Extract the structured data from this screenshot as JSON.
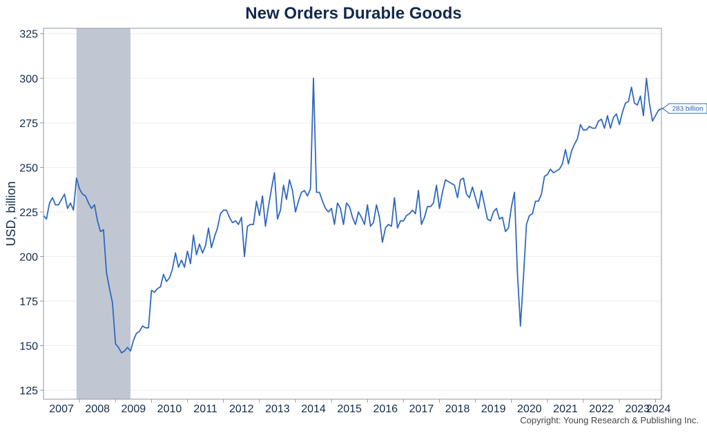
{
  "title": "New Orders Durable Goods",
  "copyright": "Copyright: Young Research & Publishing Inc.",
  "colors": {
    "line": "#2f68bf",
    "recession": "#c0c7d2",
    "text": "#13294b",
    "grid": "#eeeeee",
    "frame": "#8c96a8"
  },
  "chart_data": {
    "type": "line",
    "title": "New Orders Durable Goods",
    "ylabel": "USD, billion",
    "xlabel": "",
    "ylim": [
      120,
      328
    ],
    "xlim": [
      "2007-01",
      "2024-03"
    ],
    "yticks": [
      125,
      150,
      175,
      200,
      225,
      250,
      275,
      300,
      325
    ],
    "xtick_labels": [
      "2007",
      "2008",
      "2009",
      "2010",
      "2011",
      "2012",
      "2013",
      "2014",
      "2015",
      "2016",
      "2017",
      "2018",
      "2019",
      "2020",
      "2021",
      "2022",
      "2023",
      "2024"
    ],
    "grid": true,
    "recession": {
      "start": "2007-12",
      "end": "2009-06"
    },
    "callout": "283 billion",
    "series": [
      {
        "start": "2007-01",
        "frequency": "monthly",
        "values": [
          223,
          221,
          230,
          233,
          229,
          229,
          232,
          235,
          227,
          230,
          226,
          244,
          238,
          235,
          234,
          230,
          227,
          229,
          220,
          214,
          215,
          191,
          182,
          174,
          151,
          149,
          146,
          147,
          149,
          147,
          153,
          157,
          158,
          161,
          160,
          160,
          181,
          180,
          182,
          183,
          190,
          186,
          188,
          193,
          202,
          194,
          198,
          194,
          203,
          196,
          212,
          201,
          207,
          202,
          206,
          216,
          205,
          211,
          216,
          224,
          226,
          226,
          222,
          219,
          220,
          218,
          222,
          200,
          217,
          218,
          218,
          231,
          223,
          234,
          217,
          228,
          238,
          247,
          221,
          226,
          240,
          232,
          243,
          237,
          225,
          231,
          236,
          237,
          234,
          238,
          300,
          236,
          236,
          231,
          227,
          225,
          227,
          218,
          230,
          227,
          218,
          230,
          228,
          222,
          218,
          225,
          222,
          218,
          229,
          217,
          219,
          229,
          222,
          208,
          216,
          218,
          217,
          233,
          216,
          220,
          220,
          223,
          224,
          226,
          224,
          237,
          218,
          222,
          228,
          228,
          230,
          240,
          227,
          236,
          243,
          242,
          241,
          240,
          233,
          243,
          244,
          235,
          233,
          239,
          233,
          227,
          237,
          229,
          221,
          220,
          225,
          227,
          221,
          222,
          214,
          216,
          228,
          236,
          190,
          161,
          188,
          218,
          223,
          224,
          231,
          231,
          235,
          245,
          246,
          249,
          247,
          248,
          249,
          252,
          260,
          252,
          259,
          263,
          266,
          274,
          271,
          271,
          273,
          272,
          272,
          276,
          277,
          272,
          279,
          272,
          278,
          280,
          274,
          281,
          286,
          287,
          295,
          286,
          285,
          290,
          279,
          300,
          286,
          276,
          279,
          282,
          283,
          283
        ]
      }
    ]
  }
}
